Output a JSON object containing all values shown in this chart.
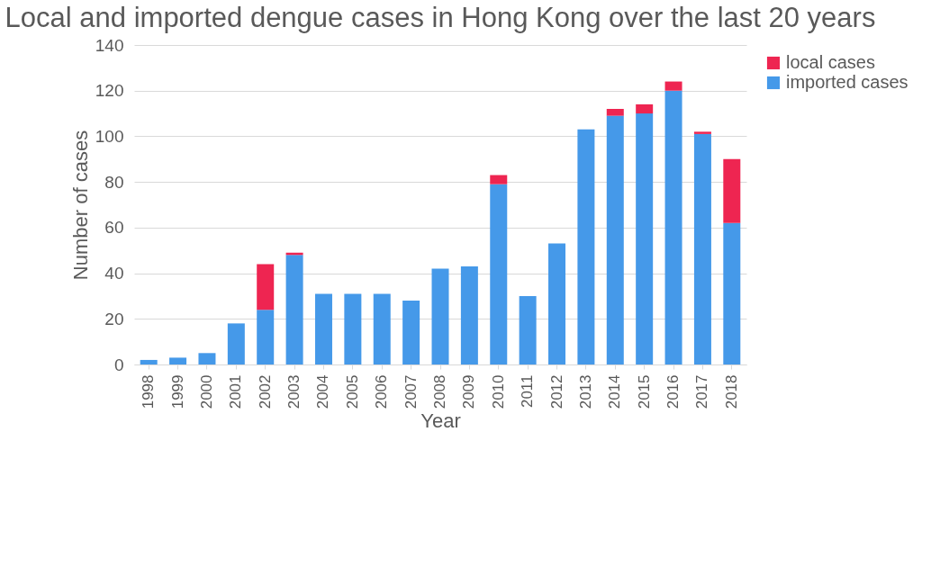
{
  "chart_data": {
    "type": "bar",
    "title": "Local and imported dengue cases in Hong Kong over the last 20 years",
    "xlabel": "Year",
    "ylabel": "Number of cases",
    "categories": [
      "1998",
      "1999",
      "2000",
      "2001",
      "2002",
      "2003",
      "2004",
      "2005",
      "2006",
      "2007",
      "2008",
      "2009",
      "2010",
      "2011",
      "2012",
      "2013",
      "2014",
      "2015",
      "2016",
      "2017",
      "2018"
    ],
    "stacked": true,
    "series": [
      {
        "name": "imported cases",
        "color": "#4599e9",
        "values": [
          2,
          3,
          5,
          18,
          24,
          48,
          31,
          31,
          31,
          28,
          42,
          43,
          79,
          30,
          53,
          103,
          109,
          110,
          120,
          101,
          62
        ]
      },
      {
        "name": "local cases",
        "color": "#ee2551",
        "values": [
          0,
          0,
          0,
          0,
          20,
          1,
          0,
          0,
          0,
          0,
          0,
          0,
          4,
          0,
          0,
          0,
          3,
          4,
          4,
          1,
          28
        ]
      }
    ],
    "ylim": [
      0,
      140
    ],
    "yticks": [
      0,
      20,
      40,
      60,
      80,
      100,
      120,
      140
    ],
    "grid": "y",
    "legend": "right"
  }
}
